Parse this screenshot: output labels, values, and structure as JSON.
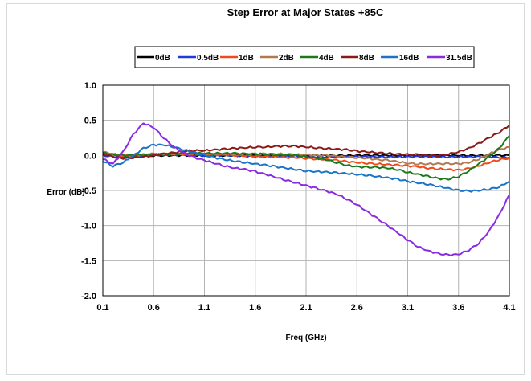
{
  "chart_data": {
    "type": "line",
    "title": "Step Error at Major States +85C",
    "xlabel": "Freq (GHz)",
    "ylabel": "Error (dB)",
    "xlim": [
      0.1,
      4.1
    ],
    "ylim": [
      -2.0,
      1.0
    ],
    "xticks": [
      "0.1",
      "0.6",
      "1.1",
      "1.6",
      "2.1",
      "2.6",
      "3.1",
      "3.6",
      "4.1"
    ],
    "yticks": [
      "1.0",
      "0.5",
      "0.0",
      "-0.5",
      "-1.0",
      "-1.5",
      "-2.0"
    ],
    "grid": true,
    "legend_position": "top",
    "x": [
      0.1,
      0.2,
      0.3,
      0.4,
      0.5,
      0.6,
      0.7,
      0.8,
      0.9,
      1.0,
      1.1,
      1.2,
      1.3,
      1.4,
      1.5,
      1.6,
      1.7,
      1.8,
      1.9,
      2.0,
      2.1,
      2.2,
      2.3,
      2.4,
      2.5,
      2.6,
      2.7,
      2.8,
      2.9,
      3.0,
      3.1,
      3.2,
      3.3,
      3.4,
      3.5,
      3.6,
      3.7,
      3.8,
      3.9,
      4.0,
      4.1
    ],
    "series": [
      {
        "name": "0dB",
        "color": "#000000",
        "values": [
          0.0,
          0.0,
          0.0,
          0.0,
          0.0,
          0.0,
          0.0,
          0.0,
          0.0,
          0.0,
          0.0,
          0.0,
          0.0,
          0.0,
          0.0,
          0.0,
          0.0,
          0.0,
          0.0,
          0.0,
          0.0,
          0.0,
          0.0,
          0.0,
          0.0,
          0.0,
          0.0,
          0.0,
          0.0,
          0.0,
          0.0,
          0.0,
          0.0,
          0.0,
          0.0,
          0.0,
          0.0,
          0.0,
          0.0,
          0.0,
          0.0
        ]
      },
      {
        "name": "0.5dB",
        "color": "#1f3ae0",
        "values": [
          0.0,
          -0.02,
          -0.02,
          -0.01,
          0.0,
          0.01,
          0.01,
          0.01,
          0.01,
          0.0,
          0.0,
          0.0,
          0.0,
          0.0,
          -0.01,
          -0.01,
          -0.01,
          -0.01,
          -0.01,
          -0.01,
          -0.02,
          -0.02,
          -0.02,
          -0.02,
          -0.02,
          -0.02,
          -0.02,
          -0.02,
          -0.02,
          -0.02,
          -0.02,
          -0.02,
          -0.02,
          -0.02,
          -0.02,
          -0.02,
          -0.02,
          -0.02,
          -0.02,
          -0.03,
          -0.03
        ]
      },
      {
        "name": "1dB",
        "color": "#f04a1a",
        "values": [
          0.03,
          0.01,
          0.0,
          0.0,
          0.01,
          0.02,
          0.02,
          0.02,
          0.02,
          0.02,
          0.02,
          0.01,
          0.01,
          0.0,
          0.0,
          -0.01,
          -0.02,
          -0.02,
          -0.03,
          -0.03,
          -0.04,
          -0.05,
          -0.06,
          -0.07,
          -0.09,
          -0.1,
          -0.11,
          -0.12,
          -0.13,
          -0.14,
          -0.15,
          -0.16,
          -0.18,
          -0.19,
          -0.2,
          -0.21,
          -0.19,
          -0.15,
          -0.1,
          -0.06,
          -0.04
        ]
      },
      {
        "name": "2dB",
        "color": "#b07a50",
        "values": [
          0.05,
          0.02,
          0.0,
          -0.01,
          0.0,
          0.01,
          0.02,
          0.02,
          0.02,
          0.02,
          0.02,
          0.02,
          0.02,
          0.02,
          0.02,
          0.02,
          0.02,
          0.02,
          0.02,
          0.01,
          0.01,
          0.0,
          0.0,
          -0.01,
          -0.02,
          -0.03,
          -0.04,
          -0.06,
          -0.07,
          -0.09,
          -0.11,
          -0.12,
          -0.12,
          -0.12,
          -0.12,
          -0.12,
          -0.1,
          -0.05,
          0.02,
          0.08,
          0.12
        ]
      },
      {
        "name": "4dB",
        "color": "#1a7a1a",
        "values": [
          0.04,
          0.01,
          0.0,
          0.0,
          0.01,
          0.01,
          0.02,
          0.02,
          0.03,
          0.03,
          0.03,
          0.03,
          0.03,
          0.03,
          0.02,
          0.02,
          0.02,
          0.01,
          0.01,
          0.0,
          -0.02,
          -0.04,
          -0.06,
          -0.1,
          -0.14,
          -0.16,
          -0.17,
          -0.17,
          -0.18,
          -0.2,
          -0.24,
          -0.27,
          -0.3,
          -0.33,
          -0.34,
          -0.3,
          -0.22,
          -0.12,
          -0.02,
          0.1,
          0.28
        ]
      },
      {
        "name": "8dB",
        "color": "#8b1a1a",
        "values": [
          0.02,
          -0.02,
          -0.04,
          -0.03,
          -0.02,
          0.0,
          0.02,
          0.04,
          0.06,
          0.07,
          0.07,
          0.08,
          0.09,
          0.1,
          0.11,
          0.12,
          0.12,
          0.13,
          0.13,
          0.13,
          0.12,
          0.11,
          0.1,
          0.09,
          0.08,
          0.06,
          0.05,
          0.04,
          0.03,
          0.02,
          0.01,
          0.01,
          0.0,
          0.0,
          0.02,
          0.05,
          0.1,
          0.17,
          0.25,
          0.33,
          0.43
        ]
      },
      {
        "name": "16dB",
        "color": "#1a75c8",
        "values": [
          -0.08,
          -0.15,
          -0.1,
          0.0,
          0.1,
          0.15,
          0.15,
          0.12,
          0.08,
          0.04,
          0.0,
          -0.03,
          -0.06,
          -0.08,
          -0.1,
          -0.12,
          -0.14,
          -0.16,
          -0.18,
          -0.2,
          -0.22,
          -0.23,
          -0.24,
          -0.25,
          -0.26,
          -0.27,
          -0.28,
          -0.3,
          -0.32,
          -0.34,
          -0.37,
          -0.39,
          -0.41,
          -0.44,
          -0.47,
          -0.5,
          -0.51,
          -0.5,
          -0.48,
          -0.45,
          -0.37
        ]
      },
      {
        "name": "31.5dB",
        "color": "#8a2be2",
        "values": [
          -0.05,
          -0.12,
          0.05,
          0.3,
          0.46,
          0.4,
          0.25,
          0.12,
          0.03,
          -0.03,
          -0.07,
          -0.11,
          -0.15,
          -0.18,
          -0.2,
          -0.23,
          -0.27,
          -0.31,
          -0.35,
          -0.39,
          -0.43,
          -0.47,
          -0.51,
          -0.55,
          -0.62,
          -0.7,
          -0.8,
          -0.9,
          -1.0,
          -1.1,
          -1.2,
          -1.3,
          -1.36,
          -1.4,
          -1.42,
          -1.41,
          -1.35,
          -1.25,
          -1.08,
          -0.85,
          -0.56
        ]
      }
    ]
  }
}
